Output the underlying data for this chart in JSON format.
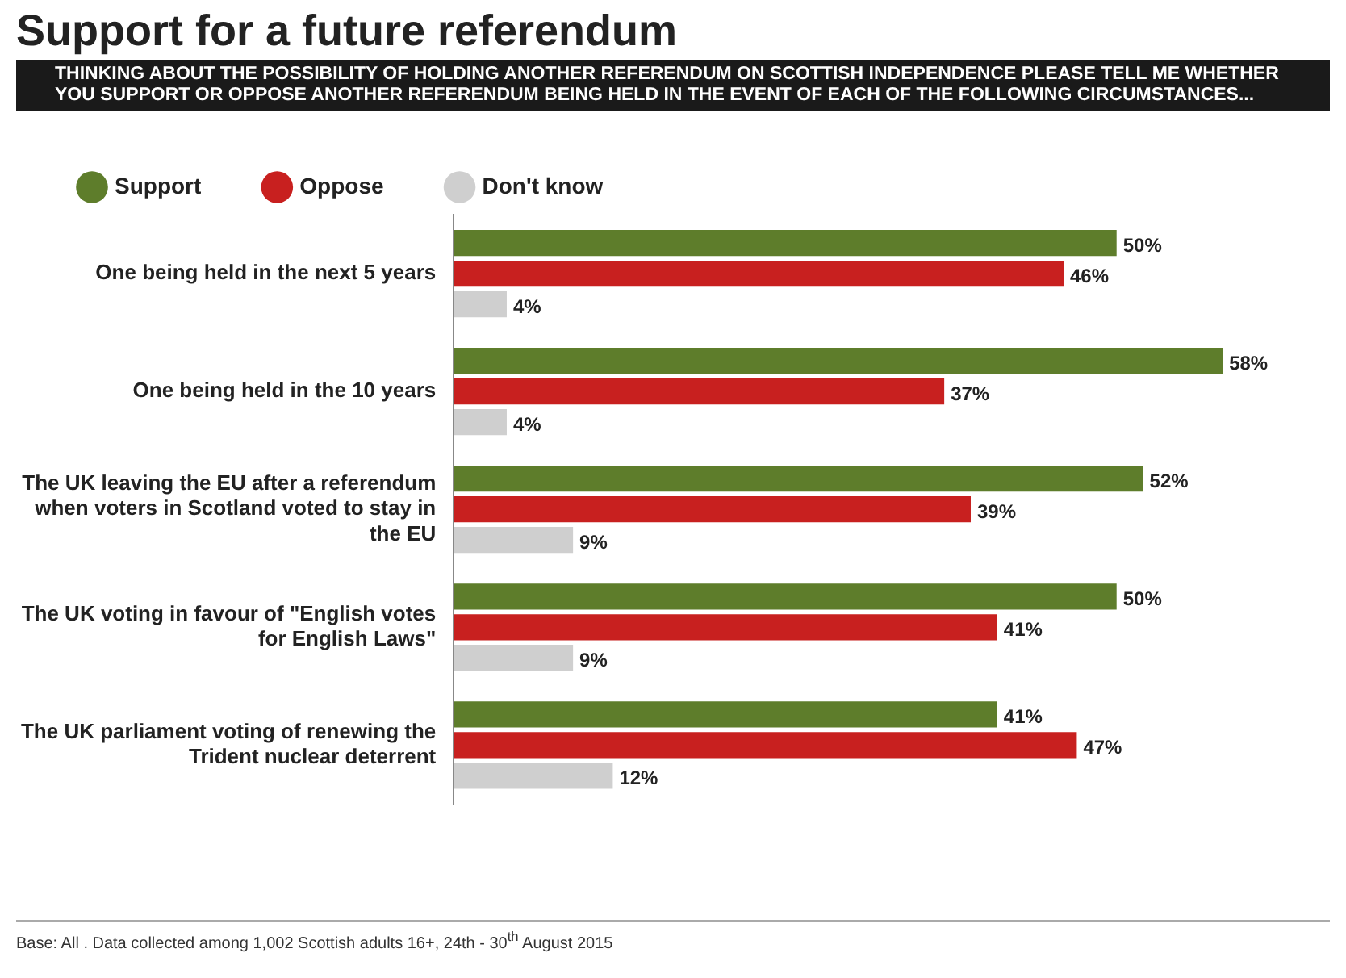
{
  "chart_data": {
    "type": "bar",
    "orientation": "horizontal",
    "title": "Support for a future referendum",
    "subtitle": "THINKING ABOUT THE POSSIBILITY OF HOLDING ANOTHER REFERENDUM ON SCOTTISH INDEPENDENCE PLEASE TELL ME WHETHER YOU SUPPORT OR OPPOSE ANOTHER REFERENDUM BEING HELD IN THE EVENT OF EACH OF THE FOLLOWING CIRCUMSTANCES...",
    "categories": [
      "One being held in the next 5 years",
      "One being held in the 10 years",
      "The UK leaving the EU after a referendum when voters in Scotland voted to stay in the EU",
      "The UK voting in favour of \"English votes for English Laws\"",
      "The UK parliament voting of renewing the Trident nuclear deterrent"
    ],
    "series": [
      {
        "name": "Support",
        "color": "#5e7d2b",
        "values": [
          50,
          58,
          52,
          50,
          41
        ],
        "value_labels": [
          "50%",
          "58%",
          "52%",
          "50%",
          "41%"
        ]
      },
      {
        "name": "Oppose",
        "color": "#c8201f",
        "values": [
          46,
          37,
          39,
          41,
          47
        ],
        "value_labels": [
          "46%",
          "37%",
          "39%",
          "41%",
          "47%"
        ]
      },
      {
        "name": "Don't know",
        "color": "#cfcfcf",
        "values": [
          4,
          4,
          9,
          9,
          12
        ],
        "value_labels": [
          "4%",
          "4%",
          "9%",
          "9%",
          "12%"
        ]
      }
    ],
    "legend": "top left",
    "annotations": [
      "Base: All . Data collected among 1,002 Scottish adults 16+, 24th - 30$^{th}$ August 2015"
    ]
  }
}
